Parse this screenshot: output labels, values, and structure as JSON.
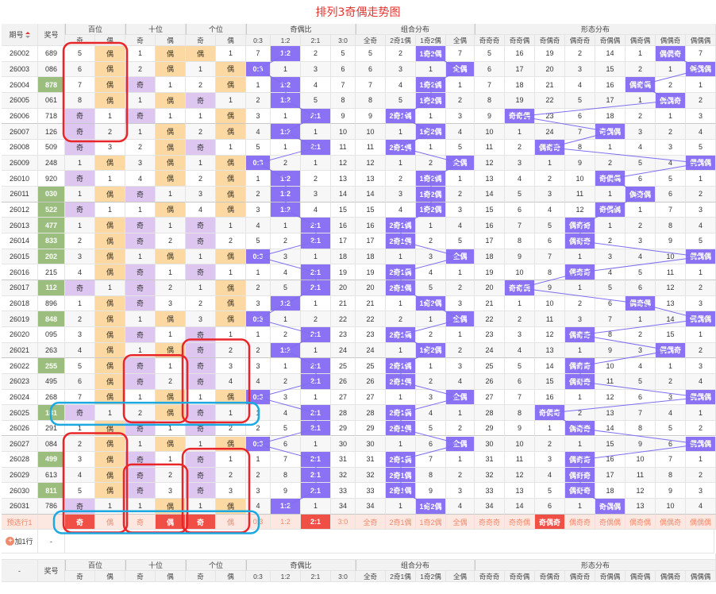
{
  "title": "排列3奇偶走势图",
  "header": {
    "issue": "期号",
    "prize": "奖号",
    "groups": [
      "百位",
      "十位",
      "个位",
      "奇偶比",
      "组合分布",
      "形态分布"
    ],
    "odd": "奇",
    "even": "偶",
    "ratios": [
      "0:3",
      "1:2",
      "2:1",
      "3:0"
    ],
    "combos": [
      "全奇",
      "2奇1偶",
      "1奇2偶",
      "全偶"
    ],
    "shapes": [
      "奇奇奇",
      "奇奇偶",
      "奇偶奇",
      "偶奇奇",
      "奇偶偶",
      "偶奇偶",
      "偶偶奇",
      "偶偶偶"
    ]
  },
  "rows": [
    {
      "issue": "26002",
      "prize": "689",
      "hl": false,
      "b": [
        "5",
        "偶"
      ],
      "s": [
        "1",
        "偶"
      ],
      "g": [
        "偶",
        "1"
      ],
      "ratio": [
        "7",
        "1:2",
        "2",
        "5"
      ],
      "combo": [
        "5",
        "2",
        "1奇2偶",
        "7"
      ],
      "shape": [
        "5",
        "16",
        "19",
        "2",
        "14",
        "1",
        "偶偶奇",
        "7"
      ]
    },
    {
      "issue": "26003",
      "prize": "086",
      "hl": false,
      "b": [
        "6",
        "偶"
      ],
      "s": [
        "2",
        "偶"
      ],
      "g": [
        "1",
        "偶"
      ],
      "ratio": [
        "0:3",
        "1",
        "3",
        "6"
      ],
      "combo": [
        "6",
        "3",
        "1",
        "全偶"
      ],
      "shape": [
        "6",
        "17",
        "20",
        "3",
        "15",
        "2",
        "1",
        "偶偶偶"
      ]
    },
    {
      "issue": "26004",
      "prize": "878",
      "hl": true,
      "b": [
        "7",
        "偶"
      ],
      "s": [
        "奇",
        "1"
      ],
      "g": [
        "2",
        "偶"
      ],
      "ratio": [
        "1",
        "1:2",
        "4",
        "7"
      ],
      "combo": [
        "7",
        "4",
        "1奇2偶",
        "1"
      ],
      "shape": [
        "7",
        "18",
        "21",
        "4",
        "16",
        "偶奇偶",
        "2",
        "1"
      ]
    },
    {
      "issue": "26005",
      "prize": "061",
      "hl": false,
      "b": [
        "8",
        "偶"
      ],
      "s": [
        "1",
        "偶"
      ],
      "g": [
        "奇",
        "1"
      ],
      "ratio": [
        "2",
        "1:2",
        "5",
        "8"
      ],
      "combo": [
        "8",
        "5",
        "1奇2偶",
        "2"
      ],
      "shape": [
        "8",
        "19",
        "22",
        "5",
        "17",
        "1",
        "偶偶奇",
        "2"
      ]
    },
    {
      "issue": "26006",
      "prize": "718",
      "hl": false,
      "b": [
        "奇",
        "1"
      ],
      "s": [
        "奇",
        "1"
      ],
      "g": [
        "1",
        "偶"
      ],
      "ratio": [
        "3",
        "1",
        "2:1",
        "9"
      ],
      "combo": [
        "9",
        "2奇1偶",
        "1",
        "3"
      ],
      "shape": [
        "9",
        "奇奇偶",
        "23",
        "6",
        "18",
        "2",
        "1",
        "3"
      ]
    },
    {
      "issue": "26007",
      "prize": "126",
      "hl": false,
      "b": [
        "奇",
        "2"
      ],
      "s": [
        "1",
        "偶"
      ],
      "g": [
        "2",
        "偶"
      ],
      "ratio": [
        "4",
        "1:2",
        "1",
        "10"
      ],
      "combo": [
        "10",
        "1",
        "1奇2偶",
        "4"
      ],
      "shape": [
        "10",
        "1",
        "24",
        "7",
        "奇偶偶",
        "3",
        "2",
        "4"
      ]
    },
    {
      "issue": "26008",
      "prize": "509",
      "hl": false,
      "b": [
        "奇",
        "3"
      ],
      "s": [
        "2",
        "偶"
      ],
      "g": [
        "奇",
        "1"
      ],
      "ratio": [
        "5",
        "1",
        "2:1",
        "11"
      ],
      "combo": [
        "11",
        "2奇1偶",
        "1",
        "5"
      ],
      "shape": [
        "11",
        "2",
        "偶奇奇",
        "8",
        "1",
        "4",
        "3",
        "5"
      ]
    },
    {
      "issue": "26009",
      "prize": "248",
      "hl": false,
      "b": [
        "1",
        "偶"
      ],
      "s": [
        "3",
        "偶"
      ],
      "g": [
        "1",
        "偶"
      ],
      "ratio": [
        "0:3",
        "2",
        "1",
        "12"
      ],
      "combo": [
        "12",
        "1",
        "2",
        "全偶"
      ],
      "shape": [
        "12",
        "3",
        "1",
        "9",
        "2",
        "5",
        "4",
        "偶偶偶"
      ]
    },
    {
      "issue": "26010",
      "prize": "920",
      "hl": false,
      "b": [
        "奇",
        "1"
      ],
      "s": [
        "4",
        "偶"
      ],
      "g": [
        "2",
        "偶"
      ],
      "ratio": [
        "1",
        "1:2",
        "2",
        "13"
      ],
      "combo": [
        "13",
        "2",
        "1奇2偶",
        "1"
      ],
      "shape": [
        "13",
        "4",
        "2",
        "10",
        "奇偶偶",
        "6",
        "5",
        "1"
      ]
    },
    {
      "issue": "26011",
      "prize": "030",
      "hl": true,
      "b": [
        "1",
        "偶"
      ],
      "s": [
        "奇",
        "1"
      ],
      "g": [
        "3",
        "偶"
      ],
      "ratio": [
        "2",
        "1:2",
        "3",
        "14"
      ],
      "combo": [
        "14",
        "3",
        "1奇2偶",
        "2"
      ],
      "shape": [
        "14",
        "5",
        "3",
        "11",
        "1",
        "偶奇偶",
        "6",
        "2"
      ]
    },
    {
      "issue": "26012",
      "prize": "522",
      "hl": true,
      "b": [
        "奇",
        "1"
      ],
      "s": [
        "1",
        "偶"
      ],
      "g": [
        "4",
        "偶"
      ],
      "ratio": [
        "3",
        "1:2",
        "4",
        "15"
      ],
      "combo": [
        "15",
        "4",
        "1奇2偶",
        "3"
      ],
      "shape": [
        "15",
        "6",
        "4",
        "12",
        "奇偶偶",
        "1",
        "7",
        "3"
      ]
    },
    {
      "issue": "26013",
      "prize": "477",
      "hl": true,
      "b": [
        "1",
        "偶"
      ],
      "s": [
        "奇",
        "1"
      ],
      "g": [
        "奇",
        "1"
      ],
      "ratio": [
        "4",
        "1",
        "2:1",
        "16"
      ],
      "combo": [
        "16",
        "2奇1偶",
        "1",
        "4"
      ],
      "shape": [
        "16",
        "7",
        "5",
        "偶奇奇",
        "1",
        "2",
        "8",
        "4"
      ]
    },
    {
      "issue": "26014",
      "prize": "833",
      "hl": true,
      "b": [
        "2",
        "偶"
      ],
      "s": [
        "奇",
        "2"
      ],
      "g": [
        "奇",
        "2"
      ],
      "ratio": [
        "5",
        "2",
        "2:1",
        "17"
      ],
      "combo": [
        "17",
        "2奇1偶",
        "2",
        "5"
      ],
      "shape": [
        "17",
        "8",
        "6",
        "偶奇奇",
        "2",
        "3",
        "9",
        "5"
      ]
    },
    {
      "issue": "26015",
      "prize": "202",
      "hl": true,
      "b": [
        "3",
        "偶"
      ],
      "s": [
        "1",
        "偶"
      ],
      "g": [
        "1",
        "偶"
      ],
      "ratio": [
        "0:3",
        "3",
        "1",
        "18"
      ],
      "combo": [
        "18",
        "1",
        "3",
        "全偶"
      ],
      "shape": [
        "18",
        "9",
        "7",
        "1",
        "3",
        "4",
        "10",
        "偶偶偶"
      ]
    },
    {
      "issue": "26016",
      "prize": "215",
      "hl": false,
      "b": [
        "4",
        "偶"
      ],
      "s": [
        "奇",
        "1"
      ],
      "g": [
        "奇",
        "1"
      ],
      "ratio": [
        "1",
        "4",
        "2:1",
        "19"
      ],
      "combo": [
        "19",
        "2奇1偶",
        "4",
        "1"
      ],
      "shape": [
        "19",
        "10",
        "8",
        "偶奇奇",
        "4",
        "5",
        "11",
        "1"
      ]
    },
    {
      "issue": "26017",
      "prize": "112",
      "hl": true,
      "b": [
        "奇",
        "1"
      ],
      "s": [
        "奇",
        "2"
      ],
      "g": [
        "1",
        "偶"
      ],
      "ratio": [
        "2",
        "5",
        "2:1",
        "20"
      ],
      "combo": [
        "20",
        "2奇1偶",
        "5",
        "2"
      ],
      "shape": [
        "20",
        "奇奇偶",
        "9",
        "1",
        "5",
        "6",
        "12",
        "2"
      ]
    },
    {
      "issue": "26018",
      "prize": "896",
      "hl": false,
      "b": [
        "1",
        "偶"
      ],
      "s": [
        "奇",
        "3"
      ],
      "g": [
        "2",
        "偶"
      ],
      "ratio": [
        "3",
        "1:2",
        "1",
        "21"
      ],
      "combo": [
        "21",
        "1",
        "1奇2偶",
        "3"
      ],
      "shape": [
        "21",
        "1",
        "10",
        "2",
        "6",
        "偶奇偶",
        "13",
        "3"
      ]
    },
    {
      "issue": "26019",
      "prize": "848",
      "hl": true,
      "b": [
        "2",
        "偶"
      ],
      "s": [
        "1",
        "偶"
      ],
      "g": [
        "3",
        "偶"
      ],
      "ratio": [
        "0:3",
        "1",
        "2",
        "22"
      ],
      "combo": [
        "22",
        "2",
        "1",
        "全偶"
      ],
      "shape": [
        "22",
        "2",
        "11",
        "3",
        "7",
        "1",
        "14",
        "偶偶偶"
      ]
    },
    {
      "issue": "26020",
      "prize": "095",
      "hl": false,
      "b": [
        "3",
        "偶"
      ],
      "s": [
        "奇",
        "1"
      ],
      "g": [
        "奇",
        "1"
      ],
      "ratio": [
        "1",
        "2",
        "2:1",
        "23"
      ],
      "combo": [
        "23",
        "2奇1偶",
        "2",
        "1"
      ],
      "shape": [
        "23",
        "3",
        "12",
        "偶奇奇",
        "8",
        "2",
        "15",
        "1"
      ]
    },
    {
      "issue": "26021",
      "prize": "263",
      "hl": false,
      "b": [
        "4",
        "偶"
      ],
      "s": [
        "1",
        "偶"
      ],
      "g": [
        "奇",
        "2"
      ],
      "ratio": [
        "2",
        "1:2",
        "1",
        "24"
      ],
      "combo": [
        "24",
        "1",
        "1奇2偶",
        "2"
      ],
      "shape": [
        "24",
        "4",
        "13",
        "1",
        "9",
        "3",
        "偶偶奇",
        "2"
      ]
    },
    {
      "issue": "26022",
      "prize": "255",
      "hl": true,
      "b": [
        "5",
        "偶"
      ],
      "s": [
        "奇",
        "1"
      ],
      "g": [
        "奇",
        "3"
      ],
      "ratio": [
        "3",
        "1",
        "2:1",
        "25"
      ],
      "combo": [
        "25",
        "2奇1偶",
        "1",
        "3"
      ],
      "shape": [
        "25",
        "5",
        "14",
        "偶奇奇",
        "10",
        "4",
        "1",
        "3"
      ]
    },
    {
      "issue": "26023",
      "prize": "495",
      "hl": false,
      "b": [
        "6",
        "偶"
      ],
      "s": [
        "奇",
        "2"
      ],
      "g": [
        "奇",
        "4"
      ],
      "ratio": [
        "4",
        "2",
        "2:1",
        "26"
      ],
      "combo": [
        "26",
        "2奇1偶",
        "2",
        "4"
      ],
      "shape": [
        "26",
        "6",
        "15",
        "偶奇奇",
        "11",
        "5",
        "2",
        "4"
      ]
    },
    {
      "issue": "26024",
      "prize": "268",
      "hl": false,
      "b": [
        "7",
        "偶"
      ],
      "s": [
        "1",
        "偶"
      ],
      "g": [
        "1",
        "偶"
      ],
      "ratio": [
        "0:3",
        "3",
        "1",
        "27"
      ],
      "combo": [
        "27",
        "1",
        "3",
        "全偶"
      ],
      "shape": [
        "27",
        "7",
        "16",
        "1",
        "12",
        "6",
        "3",
        "偶偶偶"
      ]
    },
    {
      "issue": "26025",
      "prize": "181",
      "hl": true,
      "b": [
        "奇",
        "1"
      ],
      "s": [
        "2",
        "偶"
      ],
      "g": [
        "奇",
        "1"
      ],
      "ratio": [
        "1",
        "4",
        "2:1",
        "28"
      ],
      "combo": [
        "28",
        "2奇1偶",
        "4",
        "1"
      ],
      "shape": [
        "28",
        "8",
        "奇偶奇",
        "2",
        "13",
        "7",
        "4",
        "1"
      ]
    },
    {
      "issue": "26026",
      "prize": "291",
      "hl": false,
      "b": [
        "1",
        "偶"
      ],
      "s": [
        "奇",
        "1"
      ],
      "g": [
        "奇",
        "2"
      ],
      "ratio": [
        "2",
        "5",
        "2:1",
        "29"
      ],
      "combo": [
        "29",
        "2奇1偶",
        "5",
        "2"
      ],
      "shape": [
        "29",
        "9",
        "1",
        "偶奇奇",
        "14",
        "8",
        "5",
        "2"
      ]
    },
    {
      "issue": "26027",
      "prize": "084",
      "hl": false,
      "b": [
        "2",
        "偶"
      ],
      "s": [
        "1",
        "偶"
      ],
      "g": [
        "1",
        "偶"
      ],
      "ratio": [
        "0:3",
        "6",
        "1",
        "30"
      ],
      "combo": [
        "30",
        "1",
        "6",
        "全偶"
      ],
      "shape": [
        "30",
        "10",
        "2",
        "1",
        "15",
        "9",
        "6",
        "偶偶偶"
      ]
    },
    {
      "issue": "26028",
      "prize": "499",
      "hl": true,
      "b": [
        "3",
        "偶"
      ],
      "s": [
        "奇",
        "1"
      ],
      "g": [
        "奇",
        "1"
      ],
      "ratio": [
        "1",
        "7",
        "2:1",
        "31"
      ],
      "combo": [
        "31",
        "2奇1偶",
        "7",
        "1"
      ],
      "shape": [
        "31",
        "11",
        "3",
        "偶奇奇",
        "16",
        "10",
        "7",
        "1"
      ]
    },
    {
      "issue": "26029",
      "prize": "613",
      "hl": false,
      "b": [
        "4",
        "偶"
      ],
      "s": [
        "奇",
        "2"
      ],
      "g": [
        "奇",
        "2"
      ],
      "ratio": [
        "2",
        "8",
        "2:1",
        "32"
      ],
      "combo": [
        "32",
        "2奇1偶",
        "8",
        "2"
      ],
      "shape": [
        "32",
        "12",
        "4",
        "偶奇奇",
        "17",
        "11",
        "8",
        "2"
      ]
    },
    {
      "issue": "26030",
      "prize": "811",
      "hl": true,
      "b": [
        "5",
        "偶"
      ],
      "s": [
        "奇",
        "3"
      ],
      "g": [
        "奇",
        "3"
      ],
      "ratio": [
        "3",
        "9",
        "2:1",
        "33"
      ],
      "combo": [
        "33",
        "2奇1偶",
        "9",
        "3"
      ],
      "shape": [
        "33",
        "13",
        "5",
        "偶奇奇",
        "18",
        "12",
        "9",
        "3"
      ]
    },
    {
      "issue": "26031",
      "prize": "786",
      "hl": false,
      "b": [
        "奇",
        "1"
      ],
      "s": [
        "1",
        "偶"
      ],
      "g": [
        "1",
        "偶"
      ],
      "ratio": [
        "4",
        "1:2",
        "1",
        "34"
      ],
      "combo": [
        "34",
        "1",
        "1奇2偶",
        "4"
      ],
      "shape": [
        "34",
        "14",
        "6",
        "1",
        "奇偶偶",
        "13",
        "10",
        "4"
      ]
    }
  ],
  "predict": {
    "label": "预选行1",
    "b": [
      "奇",
      "偶"
    ],
    "s": [
      "奇",
      "偶"
    ],
    "g": [
      "奇",
      "偶"
    ],
    "ratio": [
      "0:3",
      "1:2",
      "2:1",
      "3:0"
    ],
    "combo": [
      "全奇",
      "2奇1偶",
      "1奇2偶",
      "全偶"
    ],
    "shape": [
      "奇奇奇",
      "奇奇偶",
      "奇偶奇",
      "偶奇奇",
      "奇偶偶",
      "偶奇偶",
      "偶偶奇",
      "偶偶偶"
    ],
    "selected": {
      "b": 0,
      "s": 1,
      "g": 0,
      "ratio": 2,
      "combo": -1,
      "shape": 2
    }
  },
  "add_row": {
    "label": "加1行",
    "dash": "-"
  },
  "footer": {
    "issue": "-",
    "prize": "奖号"
  },
  "colors": {
    "odd": "#ddc6f0",
    "even": "#fcd9a2",
    "hit": "#8b71f3",
    "pred": "#f04f46",
    "issue_hl": "#9bbe7f",
    "circle_red": "#e8262a",
    "circle_blue": "#1ca8e0"
  }
}
